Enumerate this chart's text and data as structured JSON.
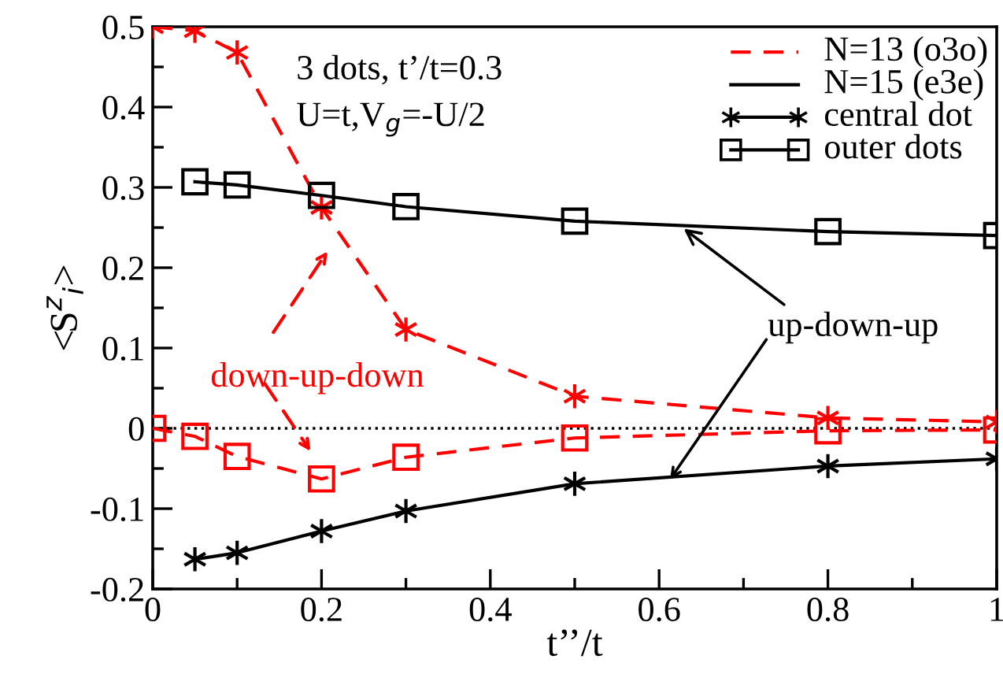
{
  "chart_data": {
    "type": "line",
    "xlabel": "t’’/t",
    "ylabel": "<S$^{z}$$_{i}$>",
    "xlim": [
      0,
      1
    ],
    "ylim": [
      -0.2,
      0.5
    ],
    "xticks": [
      0,
      0.2,
      0.4,
      0.6,
      0.8,
      1
    ],
    "yticks": [
      -0.2,
      -0.1,
      0,
      0.1,
      0.2,
      0.3,
      0.4,
      0.5
    ],
    "series": [
      {
        "color": "#ff0000",
        "line_style": "dashed",
        "marker": "cross",
        "x": [
          0,
          0.05,
          0.1,
          0.2,
          0.3,
          0.5,
          0.8,
          1
        ],
        "values": [
          0.5,
          0.495,
          0.468,
          0.275,
          0.123,
          0.04,
          0.013,
          0.008
        ]
      },
      {
        "color": "#ff0000",
        "line_style": "dashed",
        "marker": "square",
        "x": [
          0,
          0.05,
          0.1,
          0.2,
          0.3,
          0.5,
          0.8,
          1
        ],
        "values": [
          0,
          -0.01,
          -0.035,
          -0.063,
          -0.036,
          -0.012,
          -0.003,
          -0.002
        ]
      },
      {
        "color": "#000000",
        "line_style": "solid",
        "marker": "square",
        "x": [
          0.05,
          0.1,
          0.2,
          0.3,
          0.5,
          0.8,
          1
        ],
        "values": [
          0.307,
          0.303,
          0.29,
          0.276,
          0.258,
          0.245,
          0.24
        ]
      },
      {
        "color": "#000000",
        "line_style": "solid",
        "marker": "cross",
        "x": [
          0.05,
          0.1,
          0.2,
          0.3,
          0.5,
          0.8,
          1
        ],
        "values": [
          -0.163,
          -0.155,
          -0.128,
          -0.103,
          -0.069,
          -0.047,
          -0.038
        ]
      }
    ],
    "ref_lines": [
      {
        "axis": "y",
        "value": 0,
        "color": "#000000",
        "line_style": "dotted"
      }
    ],
    "annotations": [
      "N=13 (o3o)",
      "N=15 (e3e)",
      "central dot",
      "outer dots",
      "3 dots, t’/t=0.3",
      "U=t,V$_{g}$=-U/2",
      "down-up-down",
      {
        "text": "up-down-up",
        "x": 0.625,
        "y": 0.252
      }
    ]
  }
}
